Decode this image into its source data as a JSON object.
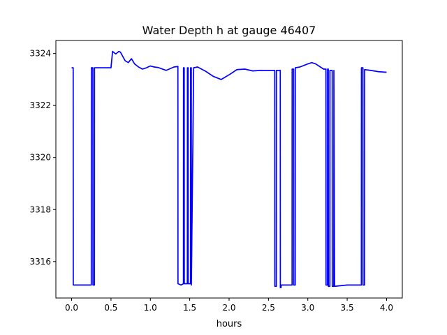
{
  "chart_data": {
    "type": "line",
    "title": "Water Depth h at gauge 46407",
    "xlabel": "hours",
    "ylabel": "",
    "xlim": [
      -0.2,
      4.2
    ],
    "ylim": [
      3314.6,
      3324.5
    ],
    "xticks": [
      0.0,
      0.5,
      1.0,
      1.5,
      2.0,
      2.5,
      3.0,
      3.5,
      4.0
    ],
    "xtick_labels": [
      "0.0",
      "0.5",
      "1.0",
      "1.5",
      "2.0",
      "2.5",
      "3.0",
      "3.5",
      "4.0"
    ],
    "yticks": [
      3316,
      3318,
      3320,
      3322,
      3324
    ],
    "ytick_labels": [
      "3316",
      "3318",
      "3320",
      "3322",
      "3324"
    ],
    "grid": false,
    "legend": null,
    "colors": {
      "line": "#0000ff",
      "axes": "#000000",
      "background": "#ffffff"
    },
    "series": [
      {
        "x": [
          0.0,
          0.02,
          0.021,
          0.25,
          0.251,
          0.27,
          0.271,
          0.29,
          0.291,
          0.5,
          0.52,
          0.56,
          0.6,
          0.62,
          0.68,
          0.72,
          0.76,
          0.8,
          0.85,
          0.9,
          0.95,
          1.0,
          1.05,
          1.1,
          1.2,
          1.3,
          1.35,
          1.351,
          1.39,
          1.42,
          1.421,
          1.43,
          1.431,
          1.47,
          1.471,
          1.48,
          1.481,
          1.51,
          1.511,
          1.52,
          1.521,
          1.55,
          1.6,
          1.7,
          1.8,
          1.9,
          2.0,
          2.1,
          2.2,
          2.3,
          2.4,
          2.5,
          2.58,
          2.581,
          2.6,
          2.601,
          2.62,
          2.65,
          2.651,
          2.66,
          2.661,
          2.8,
          2.801,
          2.82,
          2.821,
          2.84,
          2.841,
          2.9,
          3.0,
          3.05,
          3.1,
          3.2,
          3.23,
          3.231,
          3.25,
          3.251,
          3.26,
          3.261,
          3.28,
          3.281,
          3.31,
          3.311,
          3.33,
          3.331,
          3.34,
          3.5,
          3.6,
          3.68,
          3.681,
          3.7,
          3.701,
          3.72,
          3.721,
          3.8,
          3.9,
          4.0
        ],
        "y": [
          3323.45,
          3323.45,
          3315.1,
          3315.1,
          3323.45,
          3323.45,
          3315.1,
          3315.1,
          3323.45,
          3323.45,
          3324.08,
          3323.98,
          3324.08,
          3324.05,
          3323.72,
          3323.65,
          3323.8,
          3323.6,
          3323.48,
          3323.4,
          3323.45,
          3323.52,
          3323.48,
          3323.46,
          3323.35,
          3323.48,
          3323.5,
          3315.15,
          3315.1,
          3315.15,
          3323.45,
          3323.45,
          3315.15,
          3315.15,
          3323.45,
          3323.45,
          3315.15,
          3315.15,
          3323.45,
          3323.45,
          3315.1,
          3323.45,
          3323.48,
          3323.32,
          3323.12,
          3323.0,
          3323.18,
          3323.38,
          3323.4,
          3323.33,
          3323.35,
          3323.35,
          3323.35,
          3315.05,
          3315.05,
          3323.35,
          3323.35,
          3323.35,
          3315.0,
          3315.0,
          3315.1,
          3315.1,
          3323.4,
          3323.4,
          3315.1,
          3315.1,
          3323.45,
          3323.48,
          3323.6,
          3323.65,
          3323.6,
          3323.4,
          3323.4,
          3315.1,
          3315.1,
          3323.4,
          3323.4,
          3315.05,
          3315.05,
          3323.35,
          3323.35,
          3315.05,
          3315.05,
          3323.35,
          3315.05,
          3315.1,
          3315.1,
          3315.1,
          3323.45,
          3323.45,
          3315.1,
          3315.1,
          3323.38,
          3323.35,
          3323.3,
          3323.28
        ]
      }
    ]
  }
}
